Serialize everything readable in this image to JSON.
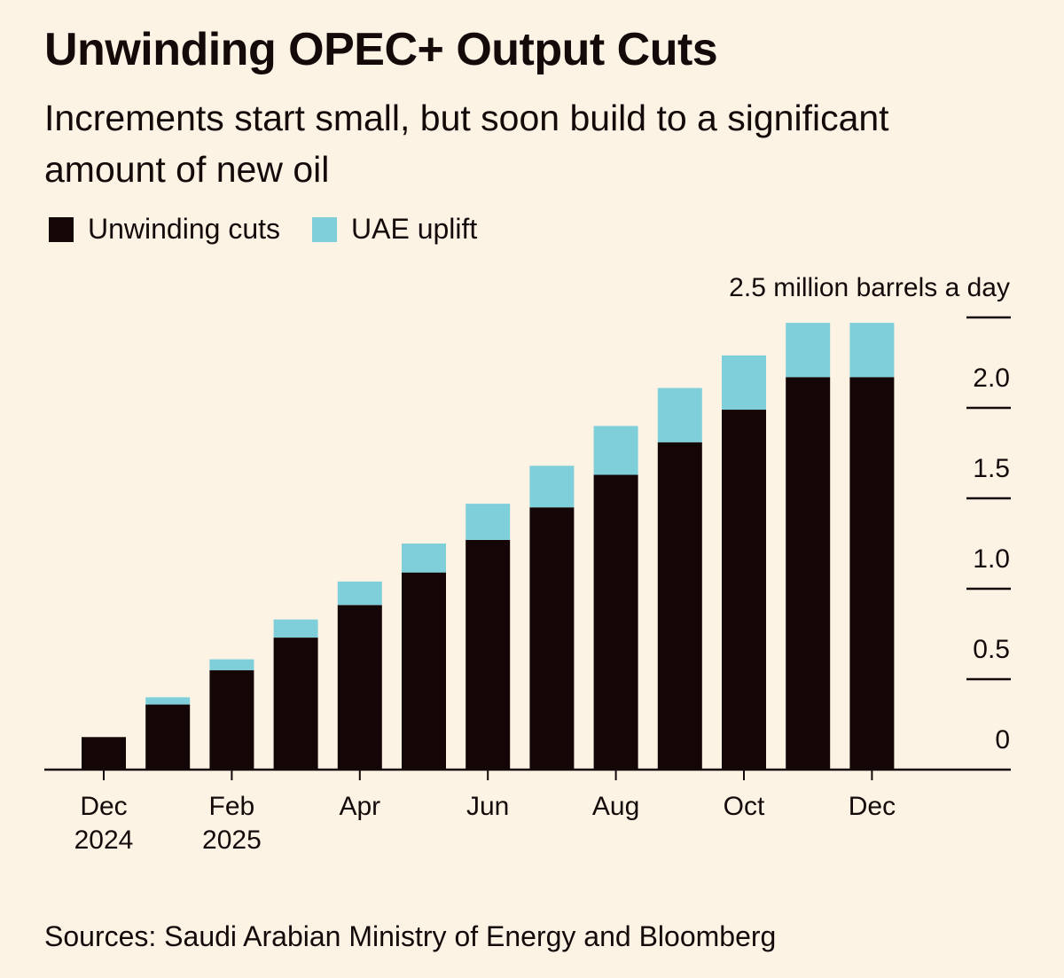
{
  "chart_data": {
    "type": "bar",
    "stacked": true,
    "title": "Unwinding OPEC+ Output Cuts",
    "subtitle": "Increments start small, but soon build to a significant amount of new oil",
    "categories": [
      "Dec 2024",
      "Jan 2025",
      "Feb 2025",
      "Mar 2025",
      "Apr 2025",
      "May 2025",
      "Jun 2025",
      "Jul 2025",
      "Aug 2025",
      "Sep 2025",
      "Oct 2025",
      "Nov 2025",
      "Dec 2025"
    ],
    "x_tick_labels": [
      {
        "index": 0,
        "line1": "Dec",
        "line2": "2024"
      },
      {
        "index": 2,
        "line1": "Feb",
        "line2": "2025"
      },
      {
        "index": 4,
        "line1": "Apr",
        "line2": ""
      },
      {
        "index": 6,
        "line1": "Jun",
        "line2": ""
      },
      {
        "index": 8,
        "line1": "Aug",
        "line2": ""
      },
      {
        "index": 10,
        "line1": "Oct",
        "line2": ""
      },
      {
        "index": 12,
        "line1": "Dec",
        "line2": ""
      }
    ],
    "series": [
      {
        "name": "Unwinding cuts",
        "color": "#140606",
        "values": [
          0.18,
          0.36,
          0.55,
          0.73,
          0.91,
          1.09,
          1.27,
          1.45,
          1.63,
          1.81,
          1.99,
          2.17,
          2.17
        ]
      },
      {
        "name": "UAE uplift",
        "color": "#7ecfda",
        "values": [
          0,
          0.04,
          0.06,
          0.1,
          0.13,
          0.16,
          0.2,
          0.23,
          0.27,
          0.3,
          0.3,
          0.3,
          0.3
        ]
      }
    ],
    "y_ticks": [
      0,
      0.5,
      1.0,
      1.5,
      2.0,
      2.5
    ],
    "y_tick_labels": [
      "0",
      "0.5",
      "1.0",
      "1.5",
      "2.0",
      "2.5 million barrels a day"
    ],
    "ylim": [
      0,
      2.5
    ],
    "yaxis_position": "right",
    "grid": false,
    "legend_position": "top-left",
    "source": "Sources: Saudi Arabian Ministry of Energy and Bloomberg"
  },
  "colors": {
    "background": "#fdf3e5",
    "text": "#140a0a"
  }
}
